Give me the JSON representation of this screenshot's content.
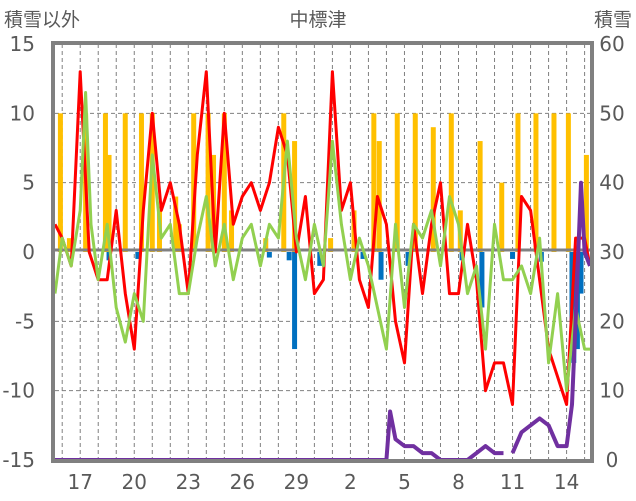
{
  "chart_data": {
    "type": "line",
    "title": "中標津",
    "left_axis_label": "積雪以外",
    "right_axis_label": "積雪",
    "ylim_left": [
      -15,
      15
    ],
    "yticks_left": [
      "15",
      "10",
      "5",
      "0",
      "-5",
      "-10",
      "-15"
    ],
    "ylim_right": [
      0,
      60
    ],
    "yticks_right": [
      "60",
      "50",
      "40",
      "30",
      "20",
      "10",
      "0"
    ],
    "x_range_days": [
      15.6,
      45.3
    ],
    "xtick_labels": [
      {
        "t": 17,
        "label": "17"
      },
      {
        "t": 20,
        "label": "20"
      },
      {
        "t": 23,
        "label": "23"
      },
      {
        "t": 26,
        "label": "26"
      },
      {
        "t": 29,
        "label": "29"
      },
      {
        "t": 32,
        "label": "2"
      },
      {
        "t": 35,
        "label": "5"
      },
      {
        "t": 38,
        "label": "8"
      },
      {
        "t": 41,
        "label": "11"
      },
      {
        "t": 44,
        "label": "14"
      }
    ],
    "grid": true,
    "series": [
      {
        "name": "red",
        "axis": "left",
        "color": "#FF0000",
        "x": [
          15.6,
          16,
          16.5,
          17,
          17.5,
          18,
          18.5,
          19,
          19.5,
          20,
          20.5,
          21,
          21.5,
          22,
          22.5,
          23,
          23.5,
          24,
          24.5,
          25,
          25.5,
          26,
          26.5,
          27,
          27.5,
          28,
          28.5,
          29,
          29.5,
          30,
          30.5,
          31,
          31.5,
          32,
          32.5,
          33,
          33.5,
          34,
          34.5,
          35,
          35.5,
          36,
          36.5,
          37,
          37.5,
          38,
          38.5,
          39,
          39.5,
          40,
          40.5,
          41,
          41.5,
          42,
          42.5,
          43,
          43.5,
          44,
          44.5,
          45,
          45.3
        ],
        "y": [
          2,
          1,
          -1,
          13,
          0,
          -2,
          -2,
          3,
          -3,
          -7,
          3,
          10,
          3,
          5,
          2,
          -3,
          7,
          13,
          0,
          10,
          2,
          4,
          5,
          3,
          5,
          9,
          7,
          0,
          4,
          -3,
          -2,
          13,
          3,
          5,
          -2,
          -4,
          4,
          2,
          -5,
          -8,
          2,
          -3,
          2,
          5,
          -3,
          -3,
          2,
          -2,
          -10,
          -8,
          -8,
          -11,
          4,
          3,
          -2,
          -7,
          -9,
          -11,
          1,
          1,
          -1
        ]
      },
      {
        "name": "green",
        "axis": "left",
        "color": "#92D050",
        "x": [
          15.6,
          16,
          16.5,
          17,
          17.3,
          17.6,
          18,
          18.5,
          19,
          19.5,
          20,
          20.5,
          21,
          21.5,
          22,
          22.5,
          23,
          23.5,
          24,
          24.5,
          25,
          25.5,
          26,
          26.5,
          27,
          27.5,
          28,
          28.5,
          29,
          29.5,
          30,
          30.5,
          31,
          31.5,
          32,
          32.5,
          33,
          33.5,
          34,
          34.5,
          35,
          35.5,
          36,
          36.5,
          37,
          37.5,
          38,
          38.5,
          39,
          39.5,
          40,
          40.5,
          41,
          41.5,
          42,
          42.5,
          43,
          43.5,
          44,
          44.5,
          45,
          45.3
        ],
        "y": [
          -3,
          1,
          -1,
          3,
          11.5,
          2,
          -2,
          2,
          -4,
          -6.5,
          -3,
          -5,
          7,
          1,
          2,
          -3,
          -3,
          1,
          4,
          -1,
          2,
          -2,
          1,
          2,
          -1,
          2,
          1,
          8,
          1,
          -2,
          2,
          -1,
          8,
          2,
          -2,
          1,
          -1,
          -4,
          -7,
          2,
          -4,
          2,
          1,
          3,
          -1,
          4,
          2,
          -3,
          -1,
          -7,
          2,
          -2,
          -2,
          -1,
          -3,
          1,
          -8,
          -3,
          -10,
          -4,
          -7,
          -7
        ]
      },
      {
        "name": "purple",
        "axis": "right",
        "color": "#7030A0",
        "x": [
          15.6,
          34,
          34.2,
          34.5,
          35,
          35.5,
          36,
          36.5,
          37,
          37.5,
          38,
          38.5,
          39,
          39.5,
          40,
          40.5,
          null,
          41,
          41.5,
          42,
          42.5,
          43,
          43.5,
          44,
          44.3,
          44.5,
          44.8,
          45,
          45.3
        ],
        "y": [
          0,
          0,
          7,
          3,
          2,
          2,
          1,
          1,
          0,
          0,
          0,
          0,
          1,
          2,
          1,
          1,
          null,
          1,
          4,
          5,
          6,
          5,
          2,
          2,
          8,
          20,
          40,
          30,
          28
        ]
      }
    ],
    "bars": [
      {
        "name": "orange",
        "axis": "left",
        "color": "#FFC000",
        "t": [
          15.9,
          16.4,
          17.3,
          18.4,
          18.6,
          19.5,
          20.4,
          21.0,
          21.4,
          22.3,
          22.5,
          23.3,
          24.1,
          24.4,
          25.0,
          25.4,
          27.3,
          28.3,
          28.9,
          30.9,
          32.2,
          33.3,
          33.6,
          34.6,
          35.6,
          36.6,
          37.6,
          38.1,
          39.2,
          40.4,
          41.3,
          42.3,
          43.3,
          44.1,
          45.1
        ],
        "values": [
          10,
          1,
          10,
          10,
          7,
          10,
          10,
          10,
          3,
          4,
          2,
          10,
          10,
          7,
          10,
          3,
          1,
          10,
          8,
          1,
          3,
          10,
          8,
          10,
          10,
          9,
          10,
          3,
          8,
          5,
          10,
          10,
          10,
          10,
          7
        ]
      },
      {
        "name": "blue",
        "axis": "left",
        "color": "#0070C0",
        "t": [
          18.6,
          20.2,
          27.5,
          28.6,
          28.9,
          30.3,
          32.7,
          33.7,
          35.2,
          38.2,
          39.3,
          41.0,
          42.6,
          44.3,
          44.4,
          44.5,
          44.6,
          44.8
        ],
        "values": [
          -0.6,
          -0.5,
          -0.4,
          -0.6,
          -7,
          -1,
          -0.5,
          -2,
          -1,
          -0.6,
          -4,
          -0.5,
          -0.7,
          -5,
          -8,
          -6,
          -7,
          -3
        ]
      }
    ]
  }
}
